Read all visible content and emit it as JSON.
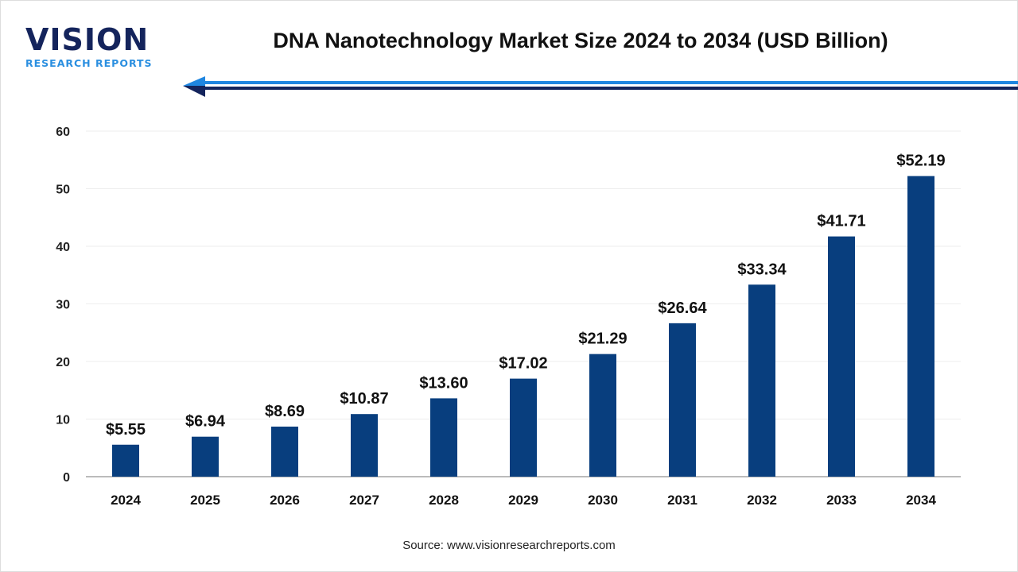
{
  "logo": {
    "main": "VISION",
    "sub": "RESEARCH REPORTS"
  },
  "colors": {
    "bar": "#083e7e",
    "accent": "#1f86e0",
    "navy": "#14245c"
  },
  "source": "Source: www.visionresearchreports.com",
  "chart_data": {
    "type": "bar",
    "title": "DNA Nanotechnology Market Size 2024 to 2034 (USD Billion)",
    "categories": [
      "2024",
      "2025",
      "2026",
      "2027",
      "2028",
      "2029",
      "2030",
      "2031",
      "2032",
      "2033",
      "2034"
    ],
    "values": [
      5.55,
      6.94,
      8.69,
      10.87,
      13.6,
      17.02,
      21.29,
      26.64,
      33.34,
      41.71,
      52.19
    ],
    "data_labels": [
      "$5.55",
      "$6.94",
      "$8.69",
      "$10.87",
      "$13.60",
      "$17.02",
      "$21.29",
      "$26.64",
      "$33.34",
      "$41.71",
      "$52.19"
    ],
    "ylim": [
      0,
      60
    ],
    "yticks": [
      0,
      10,
      20,
      30,
      40,
      50,
      60
    ],
    "grid": true,
    "xlabel": "",
    "ylabel": ""
  }
}
